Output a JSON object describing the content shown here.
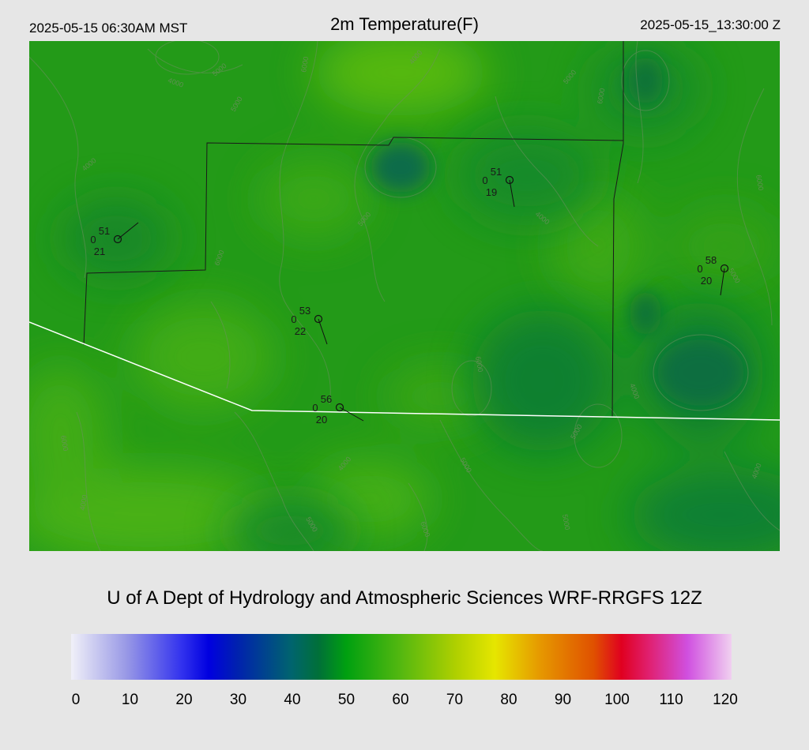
{
  "header": {
    "local_time": "2025-05-15 06:30AM MST",
    "title": "2m Temperature(F)",
    "utc_time": "2025-05-15_13:30:00 Z"
  },
  "footer": {
    "credit": "U of A Dept of Hydrology and Atmospheric Sciences WRF-RRGFS 12Z"
  },
  "colorbar": {
    "ticks": [
      "0",
      "10",
      "20",
      "30",
      "40",
      "50",
      "60",
      "70",
      "80",
      "90",
      "100",
      "110",
      "120"
    ],
    "stops": [
      {
        "value": 0,
        "color": "#f0f0f8"
      },
      {
        "value": 10,
        "color": "#9999e6"
      },
      {
        "value": 20,
        "color": "#3333ee"
      },
      {
        "value": 25,
        "color": "#0000e0"
      },
      {
        "value": 30,
        "color": "#0020b0"
      },
      {
        "value": 40,
        "color": "#00646e"
      },
      {
        "value": 45,
        "color": "#007038"
      },
      {
        "value": 50,
        "color": "#00a010"
      },
      {
        "value": 60,
        "color": "#55b810"
      },
      {
        "value": 70,
        "color": "#b0d000"
      },
      {
        "value": 77,
        "color": "#e6e600"
      },
      {
        "value": 85,
        "color": "#e69a00"
      },
      {
        "value": 95,
        "color": "#e05000"
      },
      {
        "value": 100,
        "color": "#e00020"
      },
      {
        "value": 105,
        "color": "#e02070"
      },
      {
        "value": 112,
        "color": "#d050e0"
      },
      {
        "value": 120,
        "color": "#f0d0f0"
      }
    ]
  },
  "contour_labels": [
    "4000",
    "5000",
    "6000"
  ],
  "stations": [
    {
      "id": "st-nw",
      "temp": "51",
      "gust": "0",
      "dew": "21"
    },
    {
      "id": "st-ne",
      "temp": "51",
      "gust": "0",
      "dew": "19"
    },
    {
      "id": "st-center",
      "temp": "53",
      "gust": "0",
      "dew": "22"
    },
    {
      "id": "st-south",
      "temp": "56",
      "gust": "0",
      "dew": "20"
    },
    {
      "id": "st-east",
      "temp": "58",
      "gust": "0",
      "dew": "20"
    }
  ]
}
